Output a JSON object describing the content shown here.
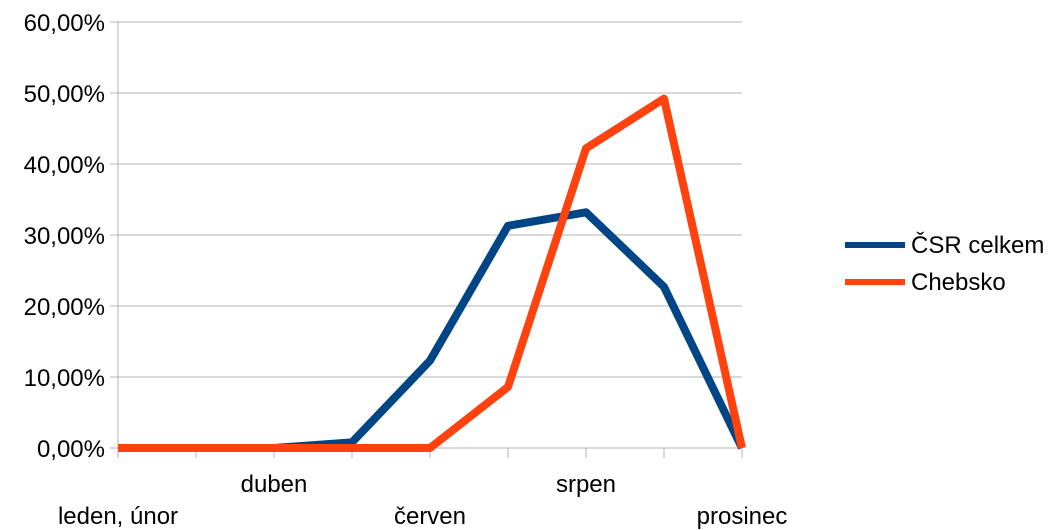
{
  "chart_data": {
    "type": "line",
    "categories": [
      "leden, únor",
      "",
      "duben",
      "",
      "červen",
      "",
      "srpen",
      "",
      "prosinec"
    ],
    "x_tick_labels": [
      "leden, únor",
      "duben",
      "červen",
      "srpen",
      "prosinec"
    ],
    "y_tick_labels": [
      "0,00%",
      "10,00%",
      "20,00%",
      "30,00%",
      "40,00%",
      "50,00%",
      "60,00%"
    ],
    "ylim": [
      0,
      60
    ],
    "grid": true,
    "legend_position": "right",
    "series": [
      {
        "name": "ČSR celkem",
        "color": "#004586",
        "values": [
          0,
          0,
          0,
          0.8,
          12.3,
          31.3,
          33.2,
          22.7,
          0
        ]
      },
      {
        "name": "Chebsko",
        "color": "#ff420e",
        "values": [
          0,
          0,
          0,
          0,
          0,
          8.6,
          42.2,
          49.2,
          0
        ]
      }
    ]
  }
}
